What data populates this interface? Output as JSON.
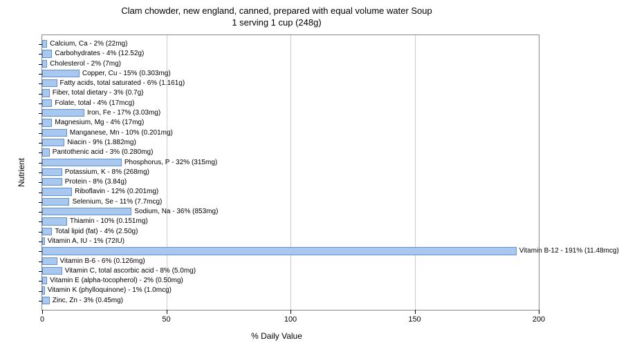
{
  "chart": {
    "type": "bar-horizontal",
    "title_line1": "Clam chowder, new england, canned, prepared with equal volume water Soup",
    "title_line2": "1 serving 1 cup (248g)",
    "title_fontsize": 13,
    "xlabel": "% Daily Value",
    "ylabel": "Nutrient",
    "label_fontsize": 12,
    "xlim_min": 0,
    "xlim_max": 200,
    "xtick_step": 50,
    "xticks": [
      0,
      50,
      100,
      150,
      200
    ],
    "background_color": "#ffffff",
    "grid_color": "#cccccc",
    "border_color": "#888888",
    "bar_color": "#a8c8f0",
    "bar_border_color": "#6090d0",
    "text_color": "#000000",
    "bar_label_fontsize": 10,
    "tick_fontsize": 11,
    "nutrients": [
      {
        "name": "Calcium, Ca",
        "pct": 2,
        "amount": "22mg"
      },
      {
        "name": "Carbohydrates",
        "pct": 4,
        "amount": "12.52g"
      },
      {
        "name": "Cholesterol",
        "pct": 2,
        "amount": "7mg"
      },
      {
        "name": "Copper, Cu",
        "pct": 15,
        "amount": "0.303mg"
      },
      {
        "name": "Fatty acids, total saturated",
        "pct": 6,
        "amount": "1.161g"
      },
      {
        "name": "Fiber, total dietary",
        "pct": 3,
        "amount": "0.7g"
      },
      {
        "name": "Folate, total",
        "pct": 4,
        "amount": "17mcg"
      },
      {
        "name": "Iron, Fe",
        "pct": 17,
        "amount": "3.03mg"
      },
      {
        "name": "Magnesium, Mg",
        "pct": 4,
        "amount": "17mg"
      },
      {
        "name": "Manganese, Mn",
        "pct": 10,
        "amount": "0.201mg"
      },
      {
        "name": "Niacin",
        "pct": 9,
        "amount": "1.882mg"
      },
      {
        "name": "Pantothenic acid",
        "pct": 3,
        "amount": "0.280mg"
      },
      {
        "name": "Phosphorus, P",
        "pct": 32,
        "amount": "315mg"
      },
      {
        "name": "Potassium, K",
        "pct": 8,
        "amount": "268mg"
      },
      {
        "name": "Protein",
        "pct": 8,
        "amount": "3.84g"
      },
      {
        "name": "Riboflavin",
        "pct": 12,
        "amount": "0.201mg"
      },
      {
        "name": "Selenium, Se",
        "pct": 11,
        "amount": "7.7mcg"
      },
      {
        "name": "Sodium, Na",
        "pct": 36,
        "amount": "853mg"
      },
      {
        "name": "Thiamin",
        "pct": 10,
        "amount": "0.151mg"
      },
      {
        "name": "Total lipid (fat)",
        "pct": 4,
        "amount": "2.50g"
      },
      {
        "name": "Vitamin A, IU",
        "pct": 1,
        "amount": "72IU"
      },
      {
        "name": "Vitamin B-12",
        "pct": 191,
        "amount": "11.48mcg"
      },
      {
        "name": "Vitamin B-6",
        "pct": 6,
        "amount": "0.126mg"
      },
      {
        "name": "Vitamin C, total ascorbic acid",
        "pct": 8,
        "amount": "5.0mg"
      },
      {
        "name": "Vitamin E (alpha-tocopherol)",
        "pct": 2,
        "amount": "0.50mg"
      },
      {
        "name": "Vitamin K (phylloquinone)",
        "pct": 1,
        "amount": "1.0mcg"
      },
      {
        "name": "Zinc, Zn",
        "pct": 3,
        "amount": "0.45mg"
      }
    ]
  }
}
